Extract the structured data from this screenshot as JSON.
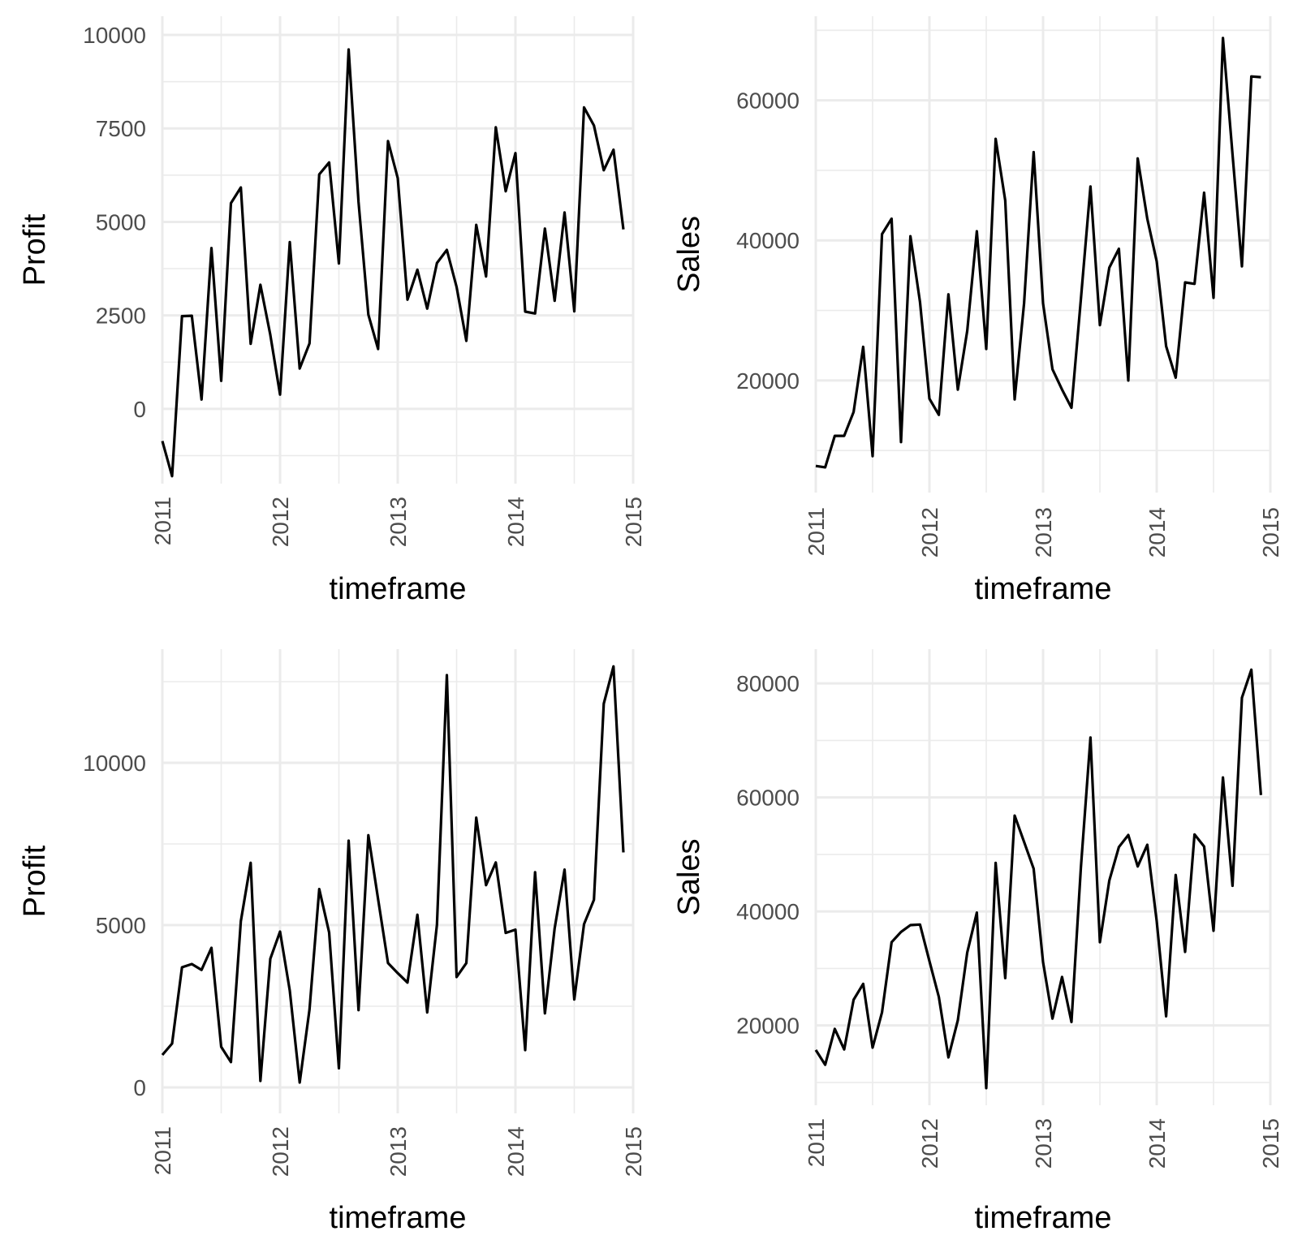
{
  "chart_data": [
    {
      "type": "line",
      "xlabel": "timeframe",
      "ylabel": "Profit",
      "xlim": [
        2011,
        2015
      ],
      "ylim": [
        -2000,
        10500
      ],
      "x_ticks": [
        2011,
        2012,
        2013,
        2014,
        2015
      ],
      "y_ticks": [
        0,
        2500,
        5000,
        7500,
        10000
      ],
      "y_tick_labels": [
        "0",
        "2500",
        "5000",
        "7500",
        "10000"
      ],
      "grid": true,
      "series": [
        {
          "x": [
            2011.0,
            2011.083,
            2011.167,
            2011.25,
            2011.333,
            2011.417,
            2011.5,
            2011.583,
            2011.667,
            2011.75,
            2011.833,
            2011.917,
            2012.0,
            2012.083,
            2012.167,
            2012.25,
            2012.333,
            2012.417,
            2012.5,
            2012.583,
            2012.667,
            2012.75,
            2012.833,
            2012.917,
            2013.0,
            2013.083,
            2013.167,
            2013.25,
            2013.333,
            2013.417,
            2013.5,
            2013.583,
            2013.667,
            2013.75,
            2013.833,
            2013.917,
            2014.0,
            2014.083,
            2014.167,
            2014.25,
            2014.333,
            2014.417,
            2014.5,
            2014.583,
            2014.667,
            2014.75,
            2014.833,
            2014.917
          ],
          "values": [
            -860,
            -1800,
            2480,
            2490,
            250,
            4300,
            750,
            5500,
            5920,
            1740,
            3320,
            1980,
            380,
            4460,
            1080,
            1750,
            6270,
            6590,
            3890,
            9610,
            5530,
            2520,
            1600,
            7160,
            6170,
            2920,
            3720,
            2680,
            3900,
            4250,
            3260,
            1820,
            4920,
            3540,
            7530,
            5820,
            6840,
            2600,
            2550,
            4820,
            2890,
            5250,
            2610,
            8060,
            7580,
            6380,
            6930,
            4800
          ]
        }
      ]
    },
    {
      "type": "line",
      "xlabel": "timeframe",
      "ylabel": "Sales",
      "xlim": [
        2011,
        2015
      ],
      "ylim": [
        4000,
        72000
      ],
      "x_ticks": [
        2011,
        2012,
        2013,
        2014,
        2015
      ],
      "y_ticks": [
        20000,
        40000,
        60000
      ],
      "y_tick_labels": [
        "20000",
        "40000",
        "60000"
      ],
      "grid": true,
      "series": [
        {
          "x": [
            2011.0,
            2011.083,
            2011.167,
            2011.25,
            2011.333,
            2011.417,
            2011.5,
            2011.583,
            2011.667,
            2011.75,
            2011.833,
            2011.917,
            2012.0,
            2012.083,
            2012.167,
            2012.25,
            2012.333,
            2012.417,
            2012.5,
            2012.583,
            2012.667,
            2012.75,
            2012.833,
            2012.917,
            2013.0,
            2013.083,
            2013.167,
            2013.25,
            2013.333,
            2013.417,
            2013.5,
            2013.583,
            2013.667,
            2013.75,
            2013.833,
            2013.917,
            2014.0,
            2014.083,
            2014.167,
            2014.25,
            2014.333,
            2014.417,
            2014.5,
            2014.583,
            2014.667,
            2014.75,
            2014.833,
            2014.917
          ],
          "values": [
            7800,
            7600,
            12100,
            12100,
            15500,
            24800,
            9200,
            40900,
            43100,
            11200,
            40600,
            31200,
            17400,
            15100,
            32300,
            18700,
            27100,
            41300,
            24500,
            54500,
            45700,
            17300,
            31000,
            52600,
            31000,
            21600,
            18700,
            16100,
            31600,
            47700,
            27900,
            36100,
            38800,
            20000,
            51700,
            43100,
            37000,
            24900,
            20400,
            34000,
            33800,
            46800,
            31800,
            68900,
            52300,
            36300,
            63400,
            63300
          ]
        }
      ]
    },
    {
      "type": "line",
      "xlabel": "timeframe",
      "ylabel": "Profit",
      "xlim": [
        2011,
        2015
      ],
      "ylim": [
        -800,
        13500
      ],
      "x_ticks": [
        2011,
        2012,
        2013,
        2014,
        2015
      ],
      "y_ticks": [
        0,
        5000,
        10000
      ],
      "y_tick_labels": [
        "0",
        "5000",
        "10000"
      ],
      "grid": true,
      "series": [
        {
          "x": [
            2011.0,
            2011.083,
            2011.167,
            2011.25,
            2011.333,
            2011.417,
            2011.5,
            2011.583,
            2011.667,
            2011.75,
            2011.833,
            2011.917,
            2012.0,
            2012.083,
            2012.167,
            2012.25,
            2012.333,
            2012.417,
            2012.5,
            2012.583,
            2012.667,
            2012.75,
            2012.833,
            2012.917,
            2013.0,
            2013.083,
            2013.167,
            2013.25,
            2013.333,
            2013.417,
            2013.5,
            2013.583,
            2013.667,
            2013.75,
            2013.833,
            2013.917,
            2014.0,
            2014.083,
            2014.167,
            2014.25,
            2014.333,
            2014.417,
            2014.5,
            2014.583,
            2014.667,
            2014.75,
            2014.833,
            2014.917
          ],
          "values": [
            1000,
            1350,
            3700,
            3800,
            3620,
            4300,
            1250,
            780,
            5120,
            6920,
            200,
            3960,
            4800,
            2980,
            150,
            2400,
            6110,
            4770,
            590,
            7600,
            2380,
            7770,
            5800,
            3830,
            3520,
            3230,
            5320,
            2310,
            5010,
            12700,
            3400,
            3830,
            8310,
            6230,
            6930,
            4760,
            4860,
            1150,
            6630,
            2280,
            4900,
            6710,
            2710,
            5030,
            5780,
            11820,
            12970,
            7240
          ]
        }
      ]
    },
    {
      "type": "line",
      "xlabel": "timeframe",
      "ylabel": "Sales",
      "xlim": [
        2011,
        2015
      ],
      "ylim": [
        6000,
        86000
      ],
      "x_ticks": [
        2011,
        2012,
        2013,
        2014,
        2015
      ],
      "y_ticks": [
        20000,
        40000,
        60000,
        80000
      ],
      "y_tick_labels": [
        "20000",
        "40000",
        "60000",
        "80000"
      ],
      "grid": true,
      "series": [
        {
          "x": [
            2011.0,
            2011.083,
            2011.167,
            2011.25,
            2011.333,
            2011.417,
            2011.5,
            2011.583,
            2011.667,
            2011.75,
            2011.833,
            2011.917,
            2012.0,
            2012.083,
            2012.167,
            2012.25,
            2012.333,
            2012.417,
            2012.5,
            2012.583,
            2012.667,
            2012.75,
            2012.833,
            2012.917,
            2013.0,
            2013.083,
            2013.167,
            2013.25,
            2013.333,
            2013.417,
            2013.5,
            2013.583,
            2013.667,
            2013.75,
            2013.833,
            2013.917,
            2014.0,
            2014.083,
            2014.167,
            2014.25,
            2014.333,
            2014.417,
            2014.5,
            2014.583,
            2014.667,
            2014.75,
            2014.833,
            2014.917
          ],
          "values": [
            15700,
            13100,
            19400,
            15800,
            24500,
            27300,
            16100,
            22300,
            34600,
            36400,
            37600,
            37700,
            31300,
            25000,
            14400,
            20900,
            32800,
            39800,
            9000,
            48500,
            28300,
            56800,
            52200,
            47500,
            31100,
            21200,
            28500,
            20600,
            47700,
            70500,
            34600,
            45400,
            51300,
            53400,
            47900,
            51700,
            38300,
            21600,
            46400,
            32900,
            53500,
            51400,
            36600,
            63500,
            44500,
            77500,
            82400,
            60400
          ]
        }
      ]
    }
  ]
}
